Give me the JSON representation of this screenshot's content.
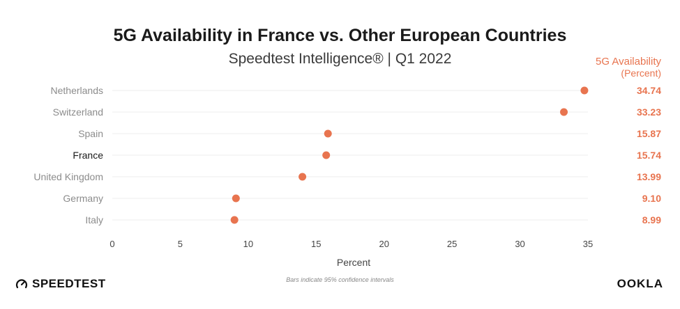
{
  "title": "5G Availability in France vs. Other European Countries",
  "subtitle": "Speedtest Intelligence® | Q1 2022",
  "value_column": {
    "header": "5G Availability",
    "subheader": "(Percent)"
  },
  "footnote": "Bars indicate 95% confidence intervals",
  "brand_left": "SPEEDTEST",
  "brand_right": "OOKLA",
  "colors": {
    "accent": "#e8744f",
    "highlight_label": "#1a1a1a",
    "label": "#8c8c8c",
    "grid": "#ececec",
    "axis_text": "#444444"
  },
  "chart_data": {
    "type": "scatter",
    "title": "5G Availability in France vs. Other European Countries",
    "subtitle": "Speedtest Intelligence® | Q1 2022",
    "xlabel": "Percent",
    "ylabel": "",
    "xlim": [
      0,
      35
    ],
    "xticks": [
      0,
      5,
      10,
      15,
      20,
      25,
      30,
      35
    ],
    "grid": "horizontal",
    "categories": [
      "Netherlands",
      "Switzerland",
      "Spain",
      "France",
      "United Kingdom",
      "Germany",
      "Italy"
    ],
    "values": [
      34.74,
      33.23,
      15.87,
      15.74,
      13.99,
      9.1,
      8.99
    ],
    "value_labels": [
      "34.74",
      "33.23",
      "15.87",
      "15.74",
      "13.99",
      "9.10",
      "8.99"
    ],
    "highlight": "France"
  }
}
